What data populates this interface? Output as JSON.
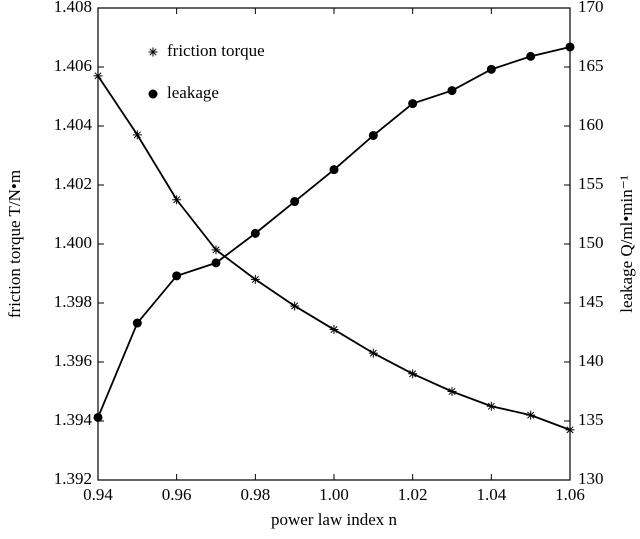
{
  "chart_data": {
    "type": "line",
    "xlabel": "power law index n",
    "ylabel": "friction torque T/N•m",
    "y2label": "leakage Q/ml•min⁻¹",
    "x": [
      0.94,
      0.95,
      0.96,
      0.97,
      0.98,
      0.99,
      1.0,
      1.01,
      1.02,
      1.03,
      1.04,
      1.05,
      1.06
    ],
    "series": [
      {
        "name": "friction torque",
        "color": "#000000",
        "marker": "star",
        "axis": "y",
        "values": [
          1.4057,
          1.4037,
          1.4015,
          1.3998,
          1.3988,
          1.3979,
          1.3971,
          1.3963,
          1.3956,
          1.395,
          1.3945,
          1.3942,
          1.3937
        ]
      },
      {
        "name": "leakage",
        "color": "#000000",
        "marker": "circle",
        "axis": "y2",
        "values": [
          135.3,
          143.3,
          147.3,
          148.4,
          150.9,
          153.6,
          156.3,
          159.2,
          161.9,
          163.0,
          164.8,
          165.9,
          166.7
        ]
      }
    ],
    "xlim": [
      0.94,
      1.06
    ],
    "xticks": [
      0.94,
      0.96,
      0.98,
      {
        "value": 1.0,
        "label": "1.00"
      },
      1.02,
      1.04,
      1.06
    ],
    "ylim": [
      1.392,
      1.408
    ],
    "yticks": [
      1.392,
      1.394,
      1.396,
      1.398,
      {
        "value": 1.4,
        "label": "1.400"
      },
      1.402,
      1.404,
      1.406,
      1.408
    ],
    "y2lim": [
      130,
      170
    ],
    "y2ticks": [
      130,
      135,
      140,
      145,
      150,
      155,
      160,
      165,
      170
    ],
    "legend": "upper left",
    "grid": false
  }
}
